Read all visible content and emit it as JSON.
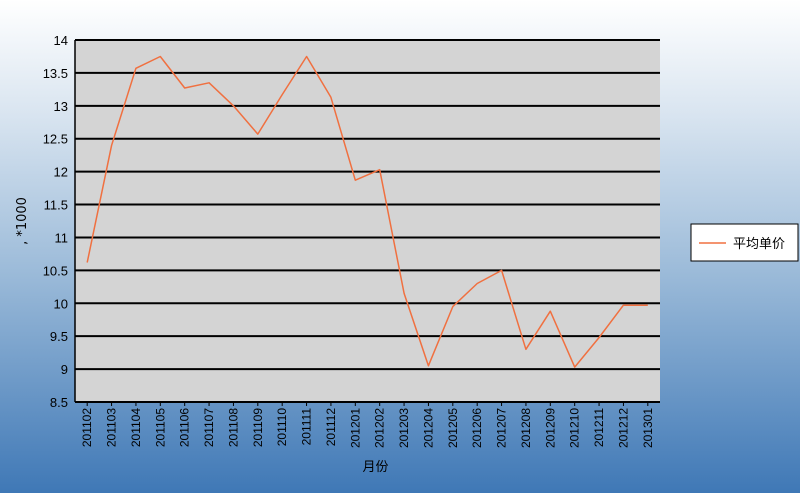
{
  "chart_data": {
    "type": "line",
    "title": "",
    "xlabel": "月份",
    "ylabel": ", *1000",
    "ylim": [
      8.5,
      14
    ],
    "yticks": [
      "8.5",
      "9",
      "9.5",
      "10",
      "10.5",
      "11",
      "11.5",
      "12",
      "12.5",
      "13",
      "13.5",
      "14"
    ],
    "grid": "horizontal",
    "legend": "right",
    "categories": [
      "201102",
      "201103",
      "201104",
      "201105",
      "201106",
      "201107",
      "201108",
      "201109",
      "201110",
      "201111",
      "201112",
      "201201",
      "201202",
      "201203",
      "201204",
      "201205",
      "201206",
      "201207",
      "201208",
      "201209",
      "201210",
      "201211",
      "201212",
      "201301"
    ],
    "series": [
      {
        "name": "平均单价",
        "color": "#f07040",
        "values": [
          10.62,
          12.4,
          13.57,
          13.75,
          13.27,
          13.35,
          13.0,
          12.57,
          13.17,
          13.75,
          13.13,
          11.87,
          12.03,
          10.15,
          9.05,
          9.95,
          10.3,
          10.5,
          9.3,
          9.88,
          9.03,
          9.48,
          9.97,
          9.97
        ]
      }
    ]
  }
}
